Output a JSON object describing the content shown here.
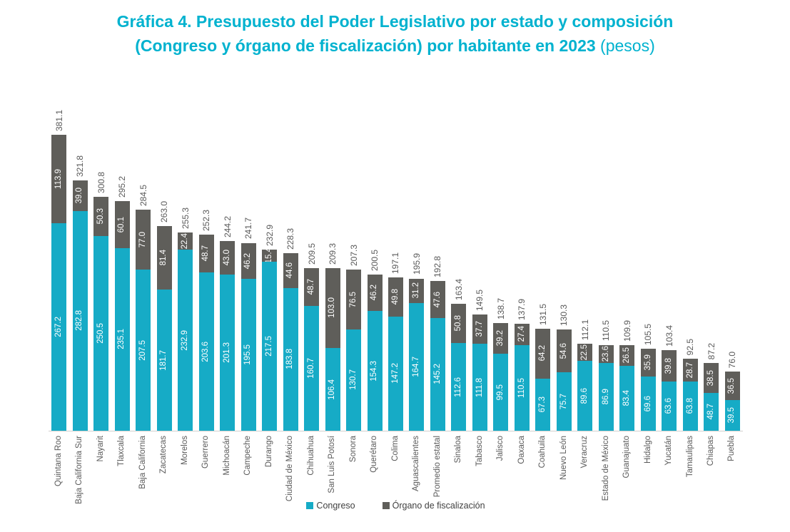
{
  "title": {
    "line1": "Gráfica 4. Presupuesto del Poder Legislativo por estado y composición",
    "line2_bold": "(Congreso y órgano de fiscalización) por habitante en 2023",
    "line2_light": " (pesos)"
  },
  "chart_data": {
    "type": "bar",
    "stacked": true,
    "title": "Gráfica 4. Presupuesto del Poder Legislativo por estado y composición (Congreso y órgano de fiscalización) por habitante en 2023 (pesos)",
    "unit": "pesos por habitante",
    "y_axis_shown": false,
    "ylim": [
      0,
      400
    ],
    "grid": false,
    "legend_position": "bottom",
    "legend": [
      "Congreso",
      "Órgano de fiscalización"
    ],
    "colors": {
      "title": "#00b2cf",
      "congreso": "#16abc6",
      "fiscalizacion": "#5f5e5a",
      "labels": "#595959",
      "axis_line": "#d2d0ce"
    },
    "categories": [
      "Quintana Roo",
      "Baja California Sur",
      "Nayarit",
      "Tlaxcala",
      "Baja California",
      "Zacatecas",
      "Morelos",
      "Guerrero",
      "Michoacán",
      "Campeche",
      "Durango",
      "Ciudad de México",
      "Chihuahua",
      "San Luis Potosí",
      "Sonora",
      "Querétaro",
      "Colima",
      "Aguascalientes",
      "Promedio estatal",
      "Sinaloa",
      "Tabasco",
      "Jalisco",
      "Oaxaca",
      "Coahuila",
      "Nuevo León",
      "Veracruz",
      "Estado de México",
      "Guanajuato",
      "Hidalgo",
      "Yucatán",
      "Tamaulipas",
      "Chiapas",
      "Puebla"
    ],
    "series": [
      {
        "name": "Congreso",
        "color": "#16abc6",
        "values": [
          "267.2",
          "282.8",
          "250.5",
          "235.1",
          "207.5",
          "181.7",
          "232.9",
          "203.6",
          "201.3",
          "195.5",
          "217.5",
          "183.8",
          "160.7",
          "106.4",
          "130.7",
          "154.3",
          "147.2",
          "164.7",
          "145.2",
          "112.6",
          "111.8",
          "99.5",
          "110.5",
          "67.3",
          "75.7",
          "89.6",
          "86.9",
          "83.4",
          "69.6",
          "63.6",
          "63.8",
          "48.7",
          "39.5"
        ]
      },
      {
        "name": "Órgano de fiscalización",
        "color": "#5f5e5a",
        "values": [
          "113.9",
          "39.0",
          "50.3",
          "60.1",
          "77.0",
          "81.4",
          "22.4",
          "48.7",
          "43.0",
          "46.2",
          "15.4",
          "44.6",
          "48.7",
          "103.0",
          "76.5",
          "46.2",
          "49.8",
          "31.2",
          "47.6",
          "50.8",
          "37.7",
          "39.2",
          "27.4",
          "64.2",
          "54.6",
          "22.5",
          "23.6",
          "26.5",
          "35.9",
          "39.8",
          "28.7",
          "38.5",
          "36.5"
        ]
      }
    ],
    "totals": [
      "381.1",
      "321.8",
      "300.8",
      "295.2",
      "284.5",
      "263.0",
      "255.3",
      "252.3",
      "244.2",
      "241.7",
      "232.9",
      "228.3",
      "209.5",
      "209.3",
      "207.3",
      "200.5",
      "197.1",
      "195.9",
      "192.8",
      "163.4",
      "149.5",
      "138.7",
      "137.9",
      "131.5",
      "130.3",
      "112.1",
      "110.5",
      "109.9",
      "105.5",
      "103.4",
      "92.5",
      "87.2",
      "76.0"
    ]
  }
}
